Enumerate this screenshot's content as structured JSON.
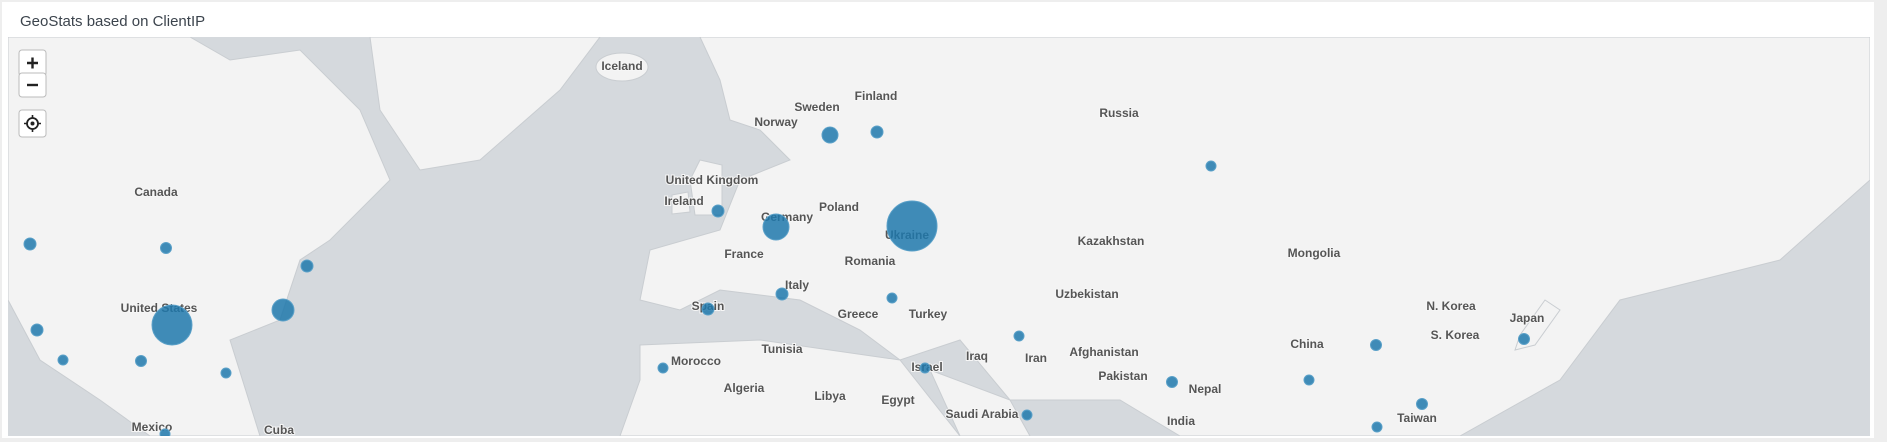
{
  "panel": {
    "title": "GeoStats based on ClientIP"
  },
  "map": {
    "labels": [
      "Iceland",
      "Sweden",
      "Finland",
      "Norway",
      "Russia",
      "Canada",
      "United Kingdom",
      "Ireland",
      "Poland",
      "Germany",
      "Ukraine",
      "France",
      "Romania",
      "Kazakhstan",
      "Mongolia",
      "Italy",
      "Uzbekistan",
      "United States",
      "Spain",
      "Greece",
      "Turkey",
      "N. Korea",
      "S. Korea",
      "Japan",
      "China",
      "Tunisia",
      "Afghanistan",
      "Morocco",
      "Iraq",
      "Iran",
      "Israel",
      "Pakistan",
      "Nepal",
      "Algeria",
      "Libya",
      "Egypt",
      "Saudi Arabia",
      "India",
      "Taiwan",
      "Mexico",
      "Cuba"
    ]
  }
}
